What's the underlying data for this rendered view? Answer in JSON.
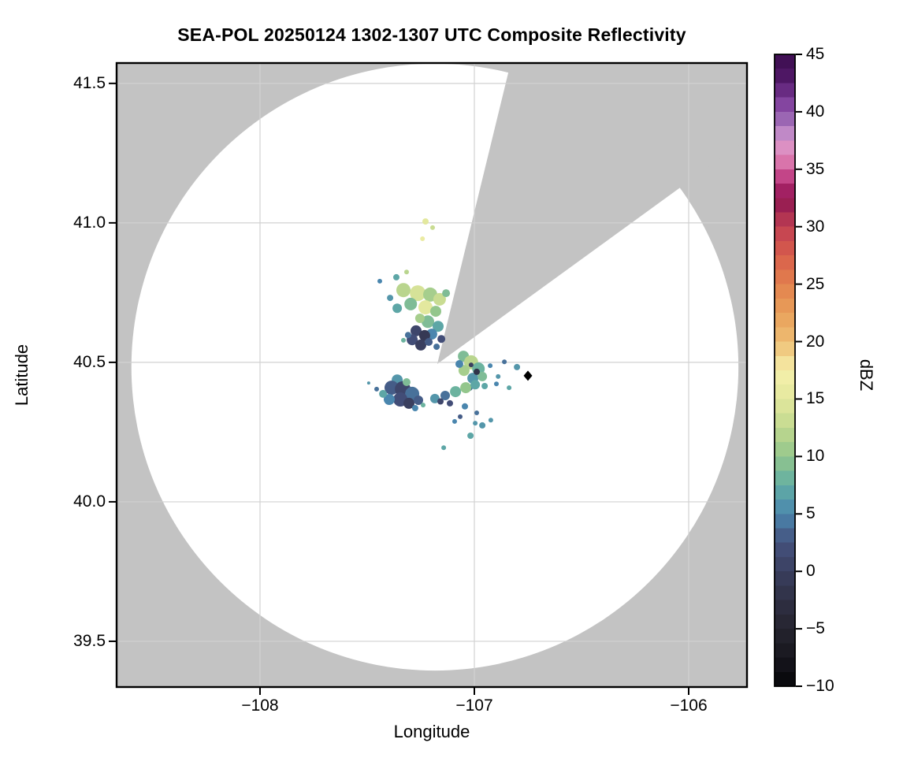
{
  "title": "SEA-POL 20250124 1302-1307 UTC Composite Reflectivity",
  "axes": {
    "xlabel": "Longitude",
    "ylabel": "Latitude",
    "xlim": [
      -108.669,
      -105.728
    ],
    "ylim": [
      39.336,
      41.573
    ],
    "x_ticks": [
      {
        "v": -108,
        "label": "−108"
      },
      {
        "v": -107,
        "label": "−107"
      },
      {
        "v": -106,
        "label": "−106"
      }
    ],
    "y_ticks": [
      {
        "v": 41.5,
        "label": "41.5"
      },
      {
        "v": 41.0,
        "label": "41.0"
      },
      {
        "v": 40.5,
        "label": "40.5"
      },
      {
        "v": 40.0,
        "label": "40.0"
      },
      {
        "v": 39.5,
        "label": "39.5"
      }
    ],
    "grid": true,
    "grid_color": "#d2d2d2"
  },
  "colorbar": {
    "label": "dBZ",
    "min": -10,
    "max": 45,
    "band_step": 1.25,
    "ticks": [
      {
        "v": 45,
        "label": "45"
      },
      {
        "v": 40,
        "label": "40"
      },
      {
        "v": 35,
        "label": "35"
      },
      {
        "v": 30,
        "label": "30"
      },
      {
        "v": 25,
        "label": "25"
      },
      {
        "v": 20,
        "label": "20"
      },
      {
        "v": 15,
        "label": "15"
      },
      {
        "v": 10,
        "label": "10"
      },
      {
        "v": 5,
        "label": "5"
      },
      {
        "v": 0,
        "label": "0"
      },
      {
        "v": -5,
        "label": "−5"
      },
      {
        "v": -10,
        "label": "−10"
      }
    ],
    "stops": [
      [
        -10,
        "#060608"
      ],
      [
        -7.5,
        "#17161e"
      ],
      [
        -5,
        "#25242f"
      ],
      [
        -2.5,
        "#2f3044"
      ],
      [
        0,
        "#3a3f5f"
      ],
      [
        2.5,
        "#44517d"
      ],
      [
        5,
        "#4a86ae"
      ],
      [
        7.5,
        "#62aea4"
      ],
      [
        10,
        "#93c68c"
      ],
      [
        12.5,
        "#c2d98f"
      ],
      [
        15,
        "#e3e89e"
      ],
      [
        17.5,
        "#f6f0ab"
      ],
      [
        20,
        "#eebd73"
      ],
      [
        22.5,
        "#e89f5a"
      ],
      [
        25,
        "#e2814e"
      ],
      [
        27.5,
        "#d85e4b"
      ],
      [
        30,
        "#c13f53"
      ],
      [
        31.25,
        "#a52a50"
      ],
      [
        32.5,
        "#8f1454"
      ],
      [
        33.75,
        "#b52d72"
      ],
      [
        35,
        "#d15d9e"
      ],
      [
        36.25,
        "#e08ab8"
      ],
      [
        37.5,
        "#d795cd"
      ],
      [
        38.75,
        "#a87cc0"
      ],
      [
        40,
        "#8d4fa6"
      ],
      [
        41.25,
        "#7b3b99"
      ],
      [
        42.5,
        "#551a6b"
      ],
      [
        45,
        "#3a0d4d"
      ]
    ]
  },
  "map": {
    "background_color": "#c3c3c3",
    "coverage_color": "#ffffff",
    "coverage_circle": {
      "center_lon": -107.184,
      "center_lat": 40.483,
      "radius_deg_lat": 1.088
    },
    "blocked_sector": {
      "apex_lon": -107.173,
      "apex_lat": 40.494,
      "start_azimuth_deg": 13.7,
      "end_azimuth_deg": 54.0
    },
    "site_marker": {
      "shape": "diamond",
      "color": "#000000",
      "lon": -106.75,
      "lat": 40.452
    }
  },
  "chart_data": {
    "type": "heatmap",
    "title": "SEA-POL 20250124 1302-1307 UTC Composite Reflectivity",
    "xlabel": "Longitude",
    "ylabel": "Latitude",
    "colorbar_label": "dBZ",
    "clim": [
      -10,
      45
    ],
    "xlim": [
      -108.669,
      -105.728
    ],
    "ylim": [
      39.336,
      41.573
    ],
    "legend": "cells are [lon, lat, dBZ, radius_px]",
    "cells": [
      [
        -107.228,
        41.005,
        15,
        4
      ],
      [
        -107.195,
        40.983,
        13,
        3
      ],
      [
        -107.242,
        40.943,
        16,
        3
      ],
      [
        -107.364,
        40.805,
        7,
        4
      ],
      [
        -107.441,
        40.791,
        5,
        3
      ],
      [
        -107.316,
        40.824,
        12,
        3
      ],
      [
        -107.331,
        40.759,
        12,
        9
      ],
      [
        -107.264,
        40.748,
        14,
        10
      ],
      [
        -107.206,
        40.743,
        11,
        9
      ],
      [
        -107.162,
        40.726,
        13,
        8
      ],
      [
        -107.297,
        40.709,
        9,
        8
      ],
      [
        -107.228,
        40.697,
        15,
        9
      ],
      [
        -107.36,
        40.694,
        7,
        6
      ],
      [
        -107.18,
        40.683,
        10,
        7
      ],
      [
        -107.132,
        40.748,
        9,
        5
      ],
      [
        -107.393,
        40.731,
        6,
        4
      ],
      [
        -107.217,
        40.646,
        9,
        8
      ],
      [
        -107.169,
        40.629,
        7,
        7
      ],
      [
        -107.199,
        40.601,
        5,
        7
      ],
      [
        -107.254,
        40.658,
        11,
        6
      ],
      [
        -107.154,
        40.584,
        2,
        5
      ],
      [
        -107.176,
        40.556,
        4,
        4
      ],
      [
        -107.272,
        40.613,
        1,
        7
      ],
      [
        -107.232,
        40.596,
        -1,
        7
      ],
      [
        -107.29,
        40.581,
        2,
        7
      ],
      [
        -107.25,
        40.562,
        0,
        7
      ],
      [
        -107.213,
        40.573,
        3,
        5
      ],
      [
        -107.309,
        40.598,
        4,
        4
      ],
      [
        -107.331,
        40.579,
        8,
        3
      ],
      [
        -107.051,
        40.522,
        9,
        7
      ],
      [
        -107.015,
        40.5,
        12,
        9
      ],
      [
        -106.981,
        40.477,
        8,
        8
      ],
      [
        -107.048,
        40.471,
        11,
        7
      ],
      [
        -107.007,
        40.443,
        6,
        7
      ],
      [
        -106.963,
        40.449,
        9,
        6
      ],
      [
        -106.989,
        40.466,
        -2,
        4
      ],
      [
        -107.015,
        40.491,
        0,
        3
      ],
      [
        -107.07,
        40.494,
        5,
        5
      ],
      [
        -106.952,
        40.415,
        7,
        4
      ],
      [
        -107.022,
        40.409,
        4,
        4
      ],
      [
        -106.86,
        40.502,
        4,
        3
      ],
      [
        -106.801,
        40.483,
        6,
        4
      ],
      [
        -106.897,
        40.423,
        5,
        3
      ],
      [
        -106.838,
        40.409,
        7,
        3
      ],
      [
        -106.926,
        40.488,
        5,
        3
      ],
      [
        -106.889,
        40.449,
        6,
        3
      ],
      [
        -107.36,
        40.437,
        6,
        7
      ],
      [
        -107.386,
        40.409,
        3,
        9
      ],
      [
        -107.334,
        40.404,
        1,
        10
      ],
      [
        -107.29,
        40.387,
        4,
        9
      ],
      [
        -107.345,
        40.367,
        2,
        9
      ],
      [
        -107.397,
        40.367,
        5,
        7
      ],
      [
        -107.305,
        40.353,
        0,
        7
      ],
      [
        -107.261,
        40.364,
        3,
        6
      ],
      [
        -107.426,
        40.387,
        7,
        5
      ],
      [
        -107.316,
        40.429,
        9,
        5
      ],
      [
        -107.276,
        40.336,
        5,
        4
      ],
      [
        -107.239,
        40.347,
        8,
        3
      ],
      [
        -107.456,
        40.404,
        4,
        3
      ],
      [
        -107.493,
        40.426,
        6,
        2
      ],
      [
        -107.184,
        40.37,
        6,
        6
      ],
      [
        -107.136,
        40.381,
        4,
        6
      ],
      [
        -107.088,
        40.395,
        8,
        7
      ],
      [
        -107.04,
        40.409,
        10,
        7
      ],
      [
        -106.996,
        40.42,
        7,
        6
      ],
      [
        -107.114,
        40.353,
        2,
        4
      ],
      [
        -107.158,
        40.36,
        1,
        4
      ],
      [
        -107.044,
        40.342,
        5,
        4
      ],
      [
        -106.989,
        40.319,
        4,
        3
      ],
      [
        -106.963,
        40.274,
        6,
        4
      ],
      [
        -107.018,
        40.237,
        7,
        4
      ],
      [
        -107.066,
        40.305,
        3,
        3
      ],
      [
        -106.923,
        40.293,
        6,
        3
      ],
      [
        -107.092,
        40.288,
        5,
        3
      ],
      [
        -107.143,
        40.194,
        7,
        3
      ],
      [
        -106.996,
        40.282,
        6,
        3
      ]
    ]
  }
}
